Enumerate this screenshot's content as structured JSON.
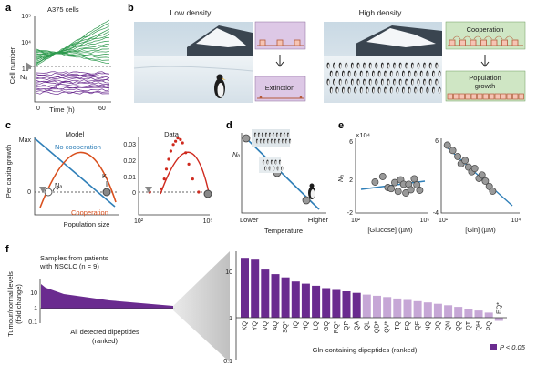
{
  "panels": {
    "a": {
      "label": "a",
      "title": "A375 cells",
      "ylabel": "Cell number",
      "xlabel": "Time (h)",
      "yticks": [
        "10⁵",
        "10⁴",
        "10³"
      ],
      "xticks": [
        "0",
        "60"
      ],
      "threshold_label": "Nₐ"
    },
    "b": {
      "label": "b",
      "low_title": "Low density",
      "high_title": "High density",
      "extinction": "Extinction",
      "cooperation": "Cooperation",
      "population_growth_line1": "Population",
      "population_growth_line2": "growth"
    },
    "c": {
      "label": "c",
      "ylabel": "Per capita growth",
      "model_title": "Model",
      "data_title": "Data",
      "max_label": "Max",
      "zero_label": "0",
      "no_coop": "No cooperation",
      "coop": "Cooperation",
      "na_label": "Nₐ",
      "k_label": "K",
      "xlabel": "Population size",
      "data_yticks": [
        "0.03",
        "0.02",
        "0.01",
        "0"
      ],
      "data_xticks": [
        "10²",
        "10⁵"
      ]
    },
    "d": {
      "label": "d",
      "ylabel": "Nₐ",
      "xlabel": "Temperature",
      "lower": "Lower",
      "higher": "Higher"
    },
    "e": {
      "label": "e",
      "ylabel": "Nₐ",
      "multiplier": "×10⁴",
      "left_yticks": [
        "6",
        "2",
        "-2"
      ],
      "left_xticks": [
        "10²",
        "10⁵"
      ],
      "left_xlabel": "[Glucose] (µM)",
      "right_yticks": [
        "6",
        "-4"
      ],
      "right_xticks": [
        "10¹",
        "10⁴"
      ],
      "right_xlabel": "[Gln] (µM)"
    },
    "f": {
      "label": "f",
      "samples_line1": "Samples from patients",
      "samples_line2": "with NSCLC (n = 9)",
      "ylabel_line1": "Tumour/normal levels",
      "ylabel_line2": "(fold change)",
      "left_yticks": [
        "10",
        "1",
        "0.1"
      ],
      "left_xlabel_line1": "All detected dipeptides",
      "left_xlabel_line2": "(ranked)",
      "right_yticks": [
        "10",
        "1",
        "0.1"
      ],
      "right_xlabel": "Gln-containing dipeptides (ranked)",
      "legend": "P < 0.05"
    }
  },
  "colors": {
    "green": "#2e9a4e",
    "purple": "#6a2b8f",
    "purple_light": "#c6a7d6",
    "blue": "#2f7fb8",
    "orange": "#d9501e",
    "red": "#cf2a1e",
    "box_purple": "#ddc8e6",
    "box_green": "#cfe6c4"
  },
  "chart_data": [
    {
      "panel": "c-data",
      "type": "scatter",
      "x_scale": "log",
      "xlim": [
        100,
        100000
      ],
      "ylim": [
        -0.005,
        0.035
      ],
      "points": [
        {
          "x": 300,
          "y": 0.0
        },
        {
          "x": 1000,
          "y": 0.002
        },
        {
          "x": 1300,
          "y": 0.008
        },
        {
          "x": 1600,
          "y": 0.014
        },
        {
          "x": 2000,
          "y": 0.02
        },
        {
          "x": 2500,
          "y": 0.025
        },
        {
          "x": 3200,
          "y": 0.029
        },
        {
          "x": 4000,
          "y": 0.031
        },
        {
          "x": 5000,
          "y": 0.033
        },
        {
          "x": 6500,
          "y": 0.032
        },
        {
          "x": 8000,
          "y": 0.03
        },
        {
          "x": 11000,
          "y": 0.024
        },
        {
          "x": 15000,
          "y": 0.017
        },
        {
          "x": 22000,
          "y": 0.008
        },
        {
          "x": 40000,
          "y": 0.0
        }
      ]
    },
    {
      "panel": "e-glucose",
      "type": "scatter",
      "x_scale": "log",
      "xlim": [
        100,
        100000
      ],
      "ylim": [
        -3,
        7
      ],
      "points": [
        {
          "x": 700,
          "y": 2.0
        },
        {
          "x": 1500,
          "y": 3.0
        },
        {
          "x": 2500,
          "y": 1.0
        },
        {
          "x": 3500,
          "y": 0.8
        },
        {
          "x": 5000,
          "y": 1.9
        },
        {
          "x": 7000,
          "y": 0.3
        },
        {
          "x": 9000,
          "y": 2.4
        },
        {
          "x": 12000,
          "y": 1.6
        },
        {
          "x": 15000,
          "y": 0.0
        },
        {
          "x": 20000,
          "y": 1.6
        },
        {
          "x": 25000,
          "y": 0.6
        },
        {
          "x": 35000,
          "y": 2.6
        },
        {
          "x": 45000,
          "y": 1.5
        },
        {
          "x": 60000,
          "y": 0.5
        }
      ]
    },
    {
      "panel": "e-gln",
      "type": "scatter",
      "x_scale": "log",
      "xlim": [
        10,
        10000
      ],
      "ylim": [
        -4,
        7
      ],
      "points": [
        {
          "x": 15,
          "y": 5.0
        },
        {
          "x": 25,
          "y": 4.2
        },
        {
          "x": 40,
          "y": 3.3
        },
        {
          "x": 55,
          "y": 2.2
        },
        {
          "x": 80,
          "y": 2.7
        },
        {
          "x": 110,
          "y": 1.7
        },
        {
          "x": 150,
          "y": 1.0
        },
        {
          "x": 200,
          "y": 1.5
        },
        {
          "x": 300,
          "y": 0.0
        },
        {
          "x": 400,
          "y": 0.5
        },
        {
          "x": 550,
          "y": -0.4
        },
        {
          "x": 800,
          "y": -1.2
        },
        {
          "x": 1100,
          "y": -1.9
        }
      ]
    },
    {
      "panel": "f-gln-dipeptides",
      "type": "bar",
      "y_scale": "log",
      "ylim": [
        0.1,
        30
      ],
      "categories": [
        "KQ",
        "YQ",
        "VQ",
        "AQ",
        "SQ*",
        "IQ",
        "HQ",
        "LQ",
        "GQ",
        "RQ*",
        "QP",
        "QA",
        "QL",
        "QD*",
        "QV*",
        "TQ",
        "FQ",
        "QF",
        "NQ",
        "DQ",
        "QN",
        "QQ",
        "QT",
        "QH",
        "PQ",
        "EQ*"
      ],
      "values": [
        22,
        20,
        12,
        9.5,
        8,
        6.5,
        5.8,
        5.2,
        4.6,
        4.2,
        3.9,
        3.6,
        3.3,
        3.1,
        2.9,
        2.7,
        2.5,
        2.35,
        2.2,
        2.05,
        1.9,
        1.75,
        1.6,
        1.45,
        1.3,
        0.85
      ],
      "significant": [
        true,
        true,
        true,
        true,
        true,
        true,
        true,
        true,
        true,
        true,
        true,
        true,
        false,
        false,
        false,
        false,
        false,
        false,
        false,
        false,
        false,
        false,
        false,
        false,
        false,
        false
      ]
    }
  ]
}
